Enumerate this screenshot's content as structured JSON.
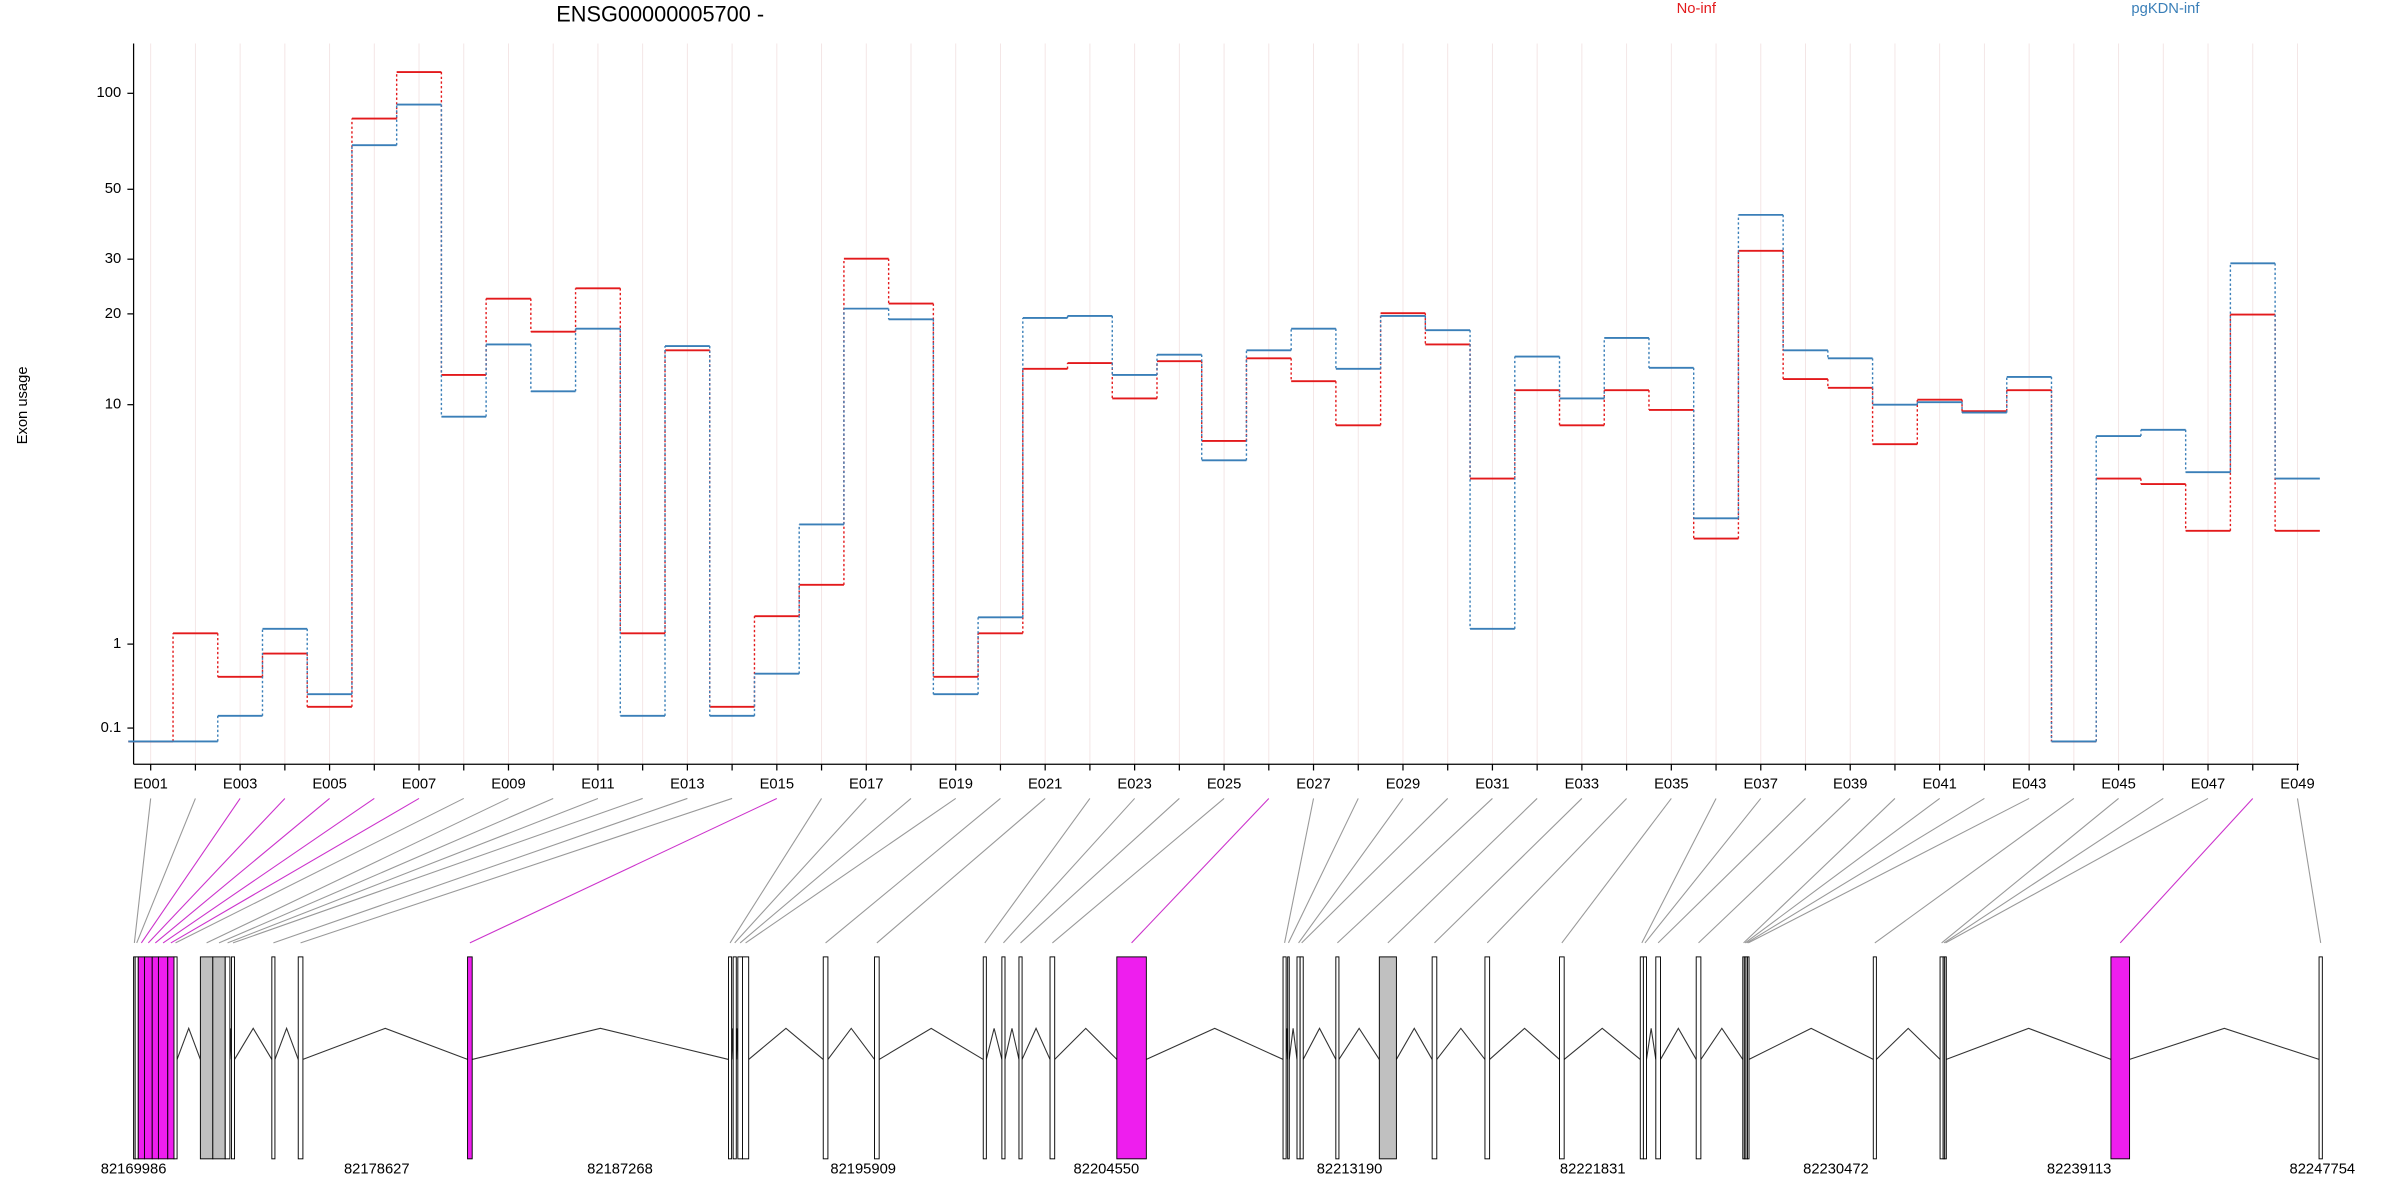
{
  "chart_data": {
    "type": "line",
    "title": "ENSG00000005700 -",
    "ylabel": "Exon usage",
    "yscale": "log1p",
    "categories": [
      "E001",
      null,
      "E003",
      null,
      "E005",
      null,
      "E007",
      null,
      "E009",
      null,
      "E011",
      null,
      "E013",
      null,
      "E015",
      null,
      "E017",
      null,
      "E019",
      null,
      "E021",
      null,
      "E023",
      null,
      "E025",
      null,
      "E027",
      null,
      "E029",
      null,
      "E031",
      null,
      "E033",
      null,
      "E035",
      null,
      "E037",
      null,
      "E039",
      null,
      "E041",
      null,
      "E043",
      null,
      "E045",
      null,
      "E047",
      null,
      "E049"
    ],
    "series": [
      {
        "name": "No-inf",
        "color": "#e31a1c",
        "values": [
          0,
          1.16,
          0.585,
          0.87,
          0.28,
          83.4,
          116.5,
          12.6,
          22.4,
          17.5,
          24.2,
          1.16,
          15.2,
          0.28,
          1.44,
          2.05,
          30.1,
          21.6,
          0.585,
          1.16,
          13.2,
          13.8,
          10.5,
          14.0,
          7.5,
          14.3,
          12.0,
          8.5,
          20.1,
          15.9,
          5.5,
          11.2,
          8.5,
          11.2,
          9.6,
          3.24,
          31.9,
          12.2,
          11.4,
          7.3,
          10.4,
          9.5,
          11.2,
          0,
          5.5,
          5.25,
          3.48,
          19.9,
          3.48
        ]
      },
      {
        "name": "pgKDN-inf",
        "color": "#3a7fb8",
        "values": [
          0,
          0,
          0.2,
          1.23,
          0.4,
          68.8,
          92.2,
          9.1,
          15.9,
          11.1,
          17.9,
          0.2,
          15.7,
          0.2,
          0.62,
          3.69,
          20.8,
          19.2,
          0.4,
          1.42,
          19.4,
          19.7,
          12.6,
          14.7,
          6.4,
          15.2,
          17.9,
          13.2,
          19.7,
          17.7,
          1.23,
          14.5,
          10.5,
          16.7,
          13.3,
          3.9,
          41.5,
          15.2,
          14.3,
          10.0,
          10.2,
          9.4,
          12.4,
          0,
          7.8,
          8.2,
          5.8,
          29.1,
          5.5
        ]
      }
    ],
    "ylim": [
      -0.15,
      143
    ],
    "yticks": [
      0.1,
      1,
      10,
      20,
      30,
      50,
      100
    ],
    "grid": true,
    "legend": "top"
  },
  "gene_model": {
    "xlim": [
      82169986,
      82247754
    ],
    "xticks": [
      82169986,
      82178627,
      82187268,
      82195909,
      82204550,
      82213190,
      82221831,
      82230472,
      82239113,
      82247754
    ],
    "exons": [
      {
        "start": 82169986,
        "end": 82170041,
        "color": "#ffffff"
      },
      {
        "start": 82170041,
        "end": 82170152,
        "color": "#ffffff"
      },
      {
        "start": 82170152,
        "end": 82170372,
        "color": "#ee1eee"
      },
      {
        "start": 82170372,
        "end": 82170648,
        "color": "#ee1eee"
      },
      {
        "start": 82170648,
        "end": 82170869,
        "color": "#ee1eee"
      },
      {
        "start": 82170869,
        "end": 82171200,
        "color": "#ee1eee"
      },
      {
        "start": 82171200,
        "end": 82171421,
        "color": "#ee1eee"
      },
      {
        "start": 82171421,
        "end": 82171531,
        "color": "#ffffff"
      },
      {
        "start": 82172359,
        "end": 82172801,
        "color": "#c0c0c0"
      },
      {
        "start": 82172801,
        "end": 82173242,
        "color": "#c0c0c0"
      },
      {
        "start": 82173242,
        "end": 82173408,
        "color": "#ffffff"
      },
      {
        "start": 82173463,
        "end": 82173573,
        "color": "#ffffff"
      },
      {
        "start": 82174898,
        "end": 82175008,
        "color": "#ffffff"
      },
      {
        "start": 82175836,
        "end": 82176002,
        "color": "#ffffff"
      },
      {
        "start": 82181852,
        "end": 82182017,
        "color": "#ee1eee"
      },
      {
        "start": 82191124,
        "end": 82191234,
        "color": "#ffffff"
      },
      {
        "start": 82191289,
        "end": 82191400,
        "color": "#ffffff"
      },
      {
        "start": 82191455,
        "end": 82191620,
        "color": "#ffffff"
      },
      {
        "start": 82191620,
        "end": 82191841,
        "color": "#ffffff"
      },
      {
        "start": 82194490,
        "end": 82194656,
        "color": "#ffffff"
      },
      {
        "start": 82196312,
        "end": 82196477,
        "color": "#ffffff"
      },
      {
        "start": 82200175,
        "end": 82200285,
        "color": "#ffffff"
      },
      {
        "start": 82200837,
        "end": 82200948,
        "color": "#ffffff"
      },
      {
        "start": 82201444,
        "end": 82201555,
        "color": "#ffffff"
      },
      {
        "start": 82202548,
        "end": 82202714,
        "color": "#ffffff"
      },
      {
        "start": 82204921,
        "end": 82205970,
        "color": "#ee1eee"
      },
      {
        "start": 82210827,
        "end": 82210937,
        "color": "#ffffff"
      },
      {
        "start": 82210992,
        "end": 82211047,
        "color": "#ffffff"
      },
      {
        "start": 82211323,
        "end": 82211434,
        "color": "#ffffff"
      },
      {
        "start": 82211434,
        "end": 82211544,
        "color": "#ffffff"
      },
      {
        "start": 82212703,
        "end": 82212813,
        "color": "#ffffff"
      },
      {
        "start": 82214248,
        "end": 82214855,
        "color": "#c0c0c0"
      },
      {
        "start": 82216125,
        "end": 82216290,
        "color": "#ffffff"
      },
      {
        "start": 82218001,
        "end": 82218167,
        "color": "#ffffff"
      },
      {
        "start": 82220650,
        "end": 82220816,
        "color": "#ffffff"
      },
      {
        "start": 82223520,
        "end": 82223631,
        "color": "#ffffff"
      },
      {
        "start": 82223631,
        "end": 82223741,
        "color": "#ffffff"
      },
      {
        "start": 82224072,
        "end": 82224238,
        "color": "#ffffff"
      },
      {
        "start": 82225507,
        "end": 82225673,
        "color": "#ffffff"
      },
      {
        "start": 82227163,
        "end": 82227218,
        "color": "#ffffff"
      },
      {
        "start": 82227218,
        "end": 82227273,
        "color": "#ffffff"
      },
      {
        "start": 82227273,
        "end": 82227328,
        "color": "#ffffff"
      },
      {
        "start": 82227328,
        "end": 82227384,
        "color": "#ffffff"
      },
      {
        "start": 82231799,
        "end": 82231909,
        "color": "#ffffff"
      },
      {
        "start": 82234172,
        "end": 82234282,
        "color": "#ffffff"
      },
      {
        "start": 82234282,
        "end": 82234338,
        "color": "#ffffff"
      },
      {
        "start": 82234338,
        "end": 82234393,
        "color": "#ffffff"
      },
      {
        "start": 82240243,
        "end": 82240905,
        "color": "#ee1eee"
      },
      {
        "start": 82247638,
        "end": 82247754,
        "color": "#ffffff"
      }
    ]
  }
}
